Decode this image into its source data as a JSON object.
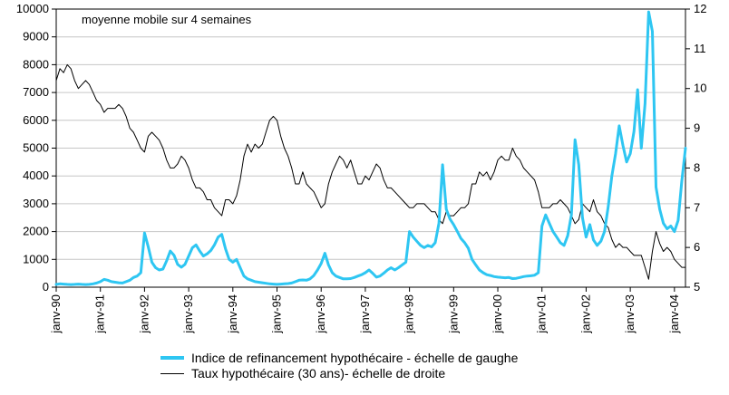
{
  "annotation": "moyenne mobile sur 4 semaines",
  "legend": [
    {
      "label": "Indice de refinancement hypothécaire - échelle de gaughe",
      "color": "#2EC6F2",
      "thickness": 4
    },
    {
      "label": "Taux hypothécaire (30 ans)- échelle de droite",
      "color": "#000000",
      "thickness": 1
    }
  ],
  "colors": {
    "grid": "#c6c6c6",
    "axis": "#000000",
    "background": "#ffffff",
    "refi_line": "#2EC6F2",
    "rate_line": "#000000"
  },
  "chart_data": {
    "type": "line",
    "title": "",
    "xlabel": "",
    "ylabel_left": "",
    "ylabel_right": "",
    "grid": "horizontal",
    "legend_position": "bottom",
    "x_unit": "monthly points, janv-1990 to avr-2004",
    "x_tick_labels": [
      "janv-90",
      "janv-91",
      "janv-92",
      "janv-93",
      "janv-94",
      "janv-95",
      "janv-96",
      "janv-97",
      "janv-98",
      "janv-99",
      "janv-00",
      "janv-01",
      "janv-02",
      "janv-03",
      "janv-04"
    ],
    "x_tick_interval_points": 12,
    "left_axis": {
      "min": 0,
      "max": 10000,
      "step": 1000,
      "ticks": [
        0,
        1000,
        2000,
        3000,
        4000,
        5000,
        6000,
        7000,
        8000,
        9000,
        10000
      ]
    },
    "right_axis": {
      "min": 5,
      "max": 12,
      "step": 1,
      "ticks": [
        5,
        6,
        7,
        8,
        9,
        10,
        11,
        12
      ]
    },
    "series": [
      {
        "name": "Indice de refinancement hypothécaire - échelle de gaughe",
        "axis": "left",
        "color": "#2EC6F2",
        "stroke_width": 3,
        "values": [
          100,
          120,
          110,
          100,
          95,
          100,
          110,
          100,
          95,
          100,
          120,
          150,
          200,
          280,
          250,
          200,
          180,
          160,
          150,
          200,
          250,
          350,
          400,
          520,
          1950,
          1450,
          900,
          700,
          620,
          650,
          950,
          1300,
          1150,
          820,
          720,
          820,
          1120,
          1420,
          1520,
          1300,
          1120,
          1200,
          1320,
          1520,
          1800,
          1900,
          1380,
          1000,
          900,
          1000,
          700,
          400,
          300,
          250,
          200,
          180,
          160,
          140,
          120,
          110,
          100,
          110,
          120,
          130,
          150,
          200,
          250,
          260,
          250,
          300,
          420,
          620,
          850,
          1220,
          800,
          520,
          400,
          350,
          300,
          300,
          310,
          350,
          400,
          450,
          520,
          620,
          500,
          360,
          400,
          500,
          620,
          700,
          620,
          700,
          800,
          900,
          2000,
          1800,
          1650,
          1500,
          1420,
          1500,
          1450,
          1600,
          2300,
          4400,
          2800,
          2450,
          2250,
          2000,
          1750,
          1600,
          1400,
          1000,
          800,
          620,
          520,
          450,
          420,
          380,
          360,
          350,
          340,
          350,
          310,
          320,
          350,
          380,
          400,
          410,
          430,
          520,
          2200,
          2600,
          2300,
          2000,
          1800,
          1600,
          1500,
          1850,
          2600,
          5300,
          4400,
          2500,
          1800,
          2250,
          1700,
          1500,
          1650,
          2000,
          2900,
          4000,
          4800,
          5800,
          5100,
          4500,
          4800,
          5600,
          7100,
          5000,
          6600,
          9900,
          9200,
          3600,
          2800,
          2300,
          2100,
          2200,
          2000,
          2400,
          3800,
          5000
        ]
      },
      {
        "name": "Taux hypothécaire (30 ans)- échelle de droite",
        "axis": "right",
        "color": "#000000",
        "stroke_width": 1,
        "values": [
          10.2,
          10.5,
          10.4,
          10.6,
          10.5,
          10.2,
          10.0,
          10.1,
          10.2,
          10.1,
          9.9,
          9.7,
          9.6,
          9.4,
          9.5,
          9.5,
          9.5,
          9.6,
          9.5,
          9.3,
          9.0,
          8.9,
          8.7,
          8.5,
          8.4,
          8.8,
          8.9,
          8.8,
          8.7,
          8.5,
          8.2,
          8.0,
          8.0,
          8.1,
          8.3,
          8.2,
          8.0,
          7.7,
          7.5,
          7.5,
          7.4,
          7.2,
          7.2,
          7.0,
          6.9,
          6.8,
          7.2,
          7.2,
          7.1,
          7.3,
          7.7,
          8.3,
          8.6,
          8.4,
          8.6,
          8.5,
          8.6,
          8.9,
          9.2,
          9.3,
          9.2,
          8.8,
          8.5,
          8.3,
          8.0,
          7.6,
          7.6,
          7.9,
          7.6,
          7.5,
          7.4,
          7.2,
          7.0,
          7.1,
          7.6,
          7.9,
          8.1,
          8.3,
          8.2,
          8.0,
          8.2,
          7.9,
          7.6,
          7.6,
          7.8,
          7.7,
          7.9,
          8.1,
          8.0,
          7.7,
          7.5,
          7.5,
          7.4,
          7.3,
          7.2,
          7.1,
          7.0,
          7.0,
          7.1,
          7.1,
          7.1,
          7.0,
          6.9,
          6.9,
          6.7,
          6.6,
          6.9,
          6.8,
          6.8,
          6.9,
          7.0,
          7.0,
          7.1,
          7.6,
          7.6,
          7.9,
          7.8,
          7.9,
          7.7,
          7.9,
          8.2,
          8.3,
          8.2,
          8.2,
          8.5,
          8.3,
          8.2,
          8.0,
          7.9,
          7.8,
          7.7,
          7.4,
          7.0,
          7.0,
          7.0,
          7.1,
          7.1,
          7.2,
          7.1,
          7.0,
          6.8,
          6.6,
          6.7,
          7.1,
          7.0,
          6.9,
          7.2,
          6.9,
          6.8,
          6.6,
          6.5,
          6.2,
          6.0,
          6.1,
          6.0,
          6.0,
          5.9,
          5.8,
          5.8,
          5.8,
          5.5,
          5.2,
          5.9,
          6.4,
          6.1,
          5.9,
          6.0,
          5.9,
          5.7,
          5.6,
          5.5,
          5.5
        ]
      }
    ]
  }
}
